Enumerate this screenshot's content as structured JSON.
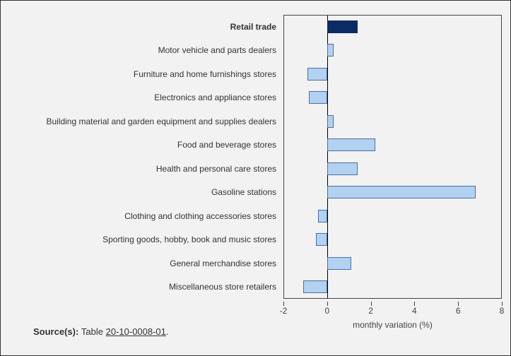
{
  "chart": {
    "type": "bar-horizontal",
    "xmin": -2,
    "xmax": 8,
    "xtick_step": 2,
    "x_title": "monthly variation (%)",
    "background_color": "#f2f2f2",
    "plot_border_color": "#444444",
    "zero_line_color": "#000000",
    "default_bar_fill": "#b3d1f0",
    "default_bar_border": "#4a6fa5",
    "emphasis_bar_fill": "#0b2b66",
    "emphasis_bar_border": "#0b2b66",
    "label_fontsize": 12,
    "tick_fontsize": 12,
    "rows": [
      {
        "label": "Retail trade",
        "value": 1.4,
        "bold": true,
        "emphasis": true
      },
      {
        "label": "Motor vehicle and parts dealers",
        "value": 0.3
      },
      {
        "label": "Furniture and home furnishings stores",
        "value": -0.9
      },
      {
        "label": "Electronics and appliance stores",
        "value": -0.85
      },
      {
        "label": "Building material and garden equipment and supplies dealers",
        "value": 0.3
      },
      {
        "label": "Food and beverage stores",
        "value": 2.2
      },
      {
        "label": "Health and personal care stores",
        "value": 1.4
      },
      {
        "label": "Gasoline stations",
        "value": 6.8
      },
      {
        "label": "Clothing and clothing accessories stores",
        "value": -0.4
      },
      {
        "label": "Sporting goods, hobby, book and music stores",
        "value": -0.5
      },
      {
        "label": "General merchandise stores",
        "value": 1.1
      },
      {
        "label": "Miscellaneous store retailers",
        "value": -1.1
      }
    ],
    "xtick_labels": [
      "-2",
      "0",
      "2",
      "4",
      "6",
      "8"
    ]
  },
  "source": {
    "prefix": "Source(s):  ",
    "text_before": "Table ",
    "link_text": "20-10-0008-01",
    "text_after": "."
  }
}
